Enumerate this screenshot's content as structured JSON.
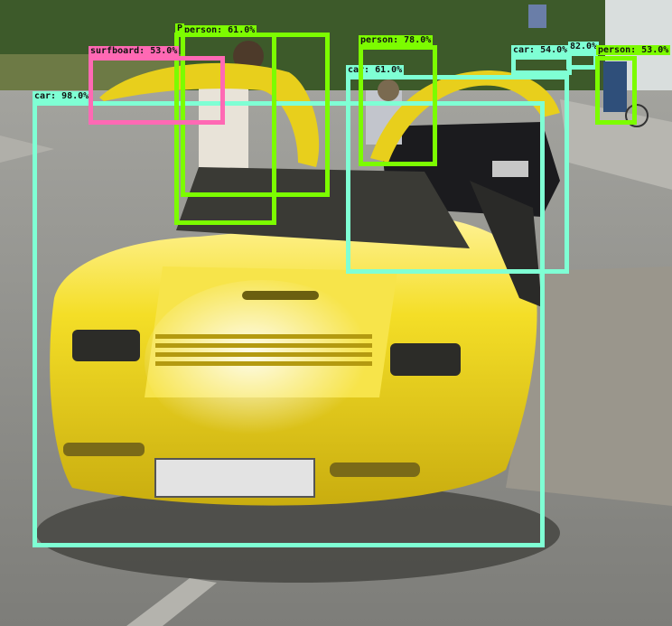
{
  "colors": {
    "car": "#7fffd4",
    "person": "#7cfc00",
    "surfboard": "#ff69b4",
    "car_paint": "#f2dc1e",
    "road": "#8c8c88",
    "cobblestone": "#9a968c",
    "foliage": "#3d5a2a"
  },
  "detections": [
    {
      "label": "car: 98.0%",
      "class": "car"
    },
    {
      "label": "car: 61.0%",
      "class": "car"
    },
    {
      "label": "car: 54.0%",
      "class": "car"
    },
    {
      "label": "82.0%",
      "class": "car"
    },
    {
      "label": "person: 61.0%",
      "class": "person"
    },
    {
      "label": "P",
      "class": "person"
    },
    {
      "label": "person: 78.0%",
      "class": "person"
    },
    {
      "label": "person: 53.0%",
      "class": "person"
    },
    {
      "label": "surfboard: 53.0%",
      "class": "surfboard"
    }
  ]
}
